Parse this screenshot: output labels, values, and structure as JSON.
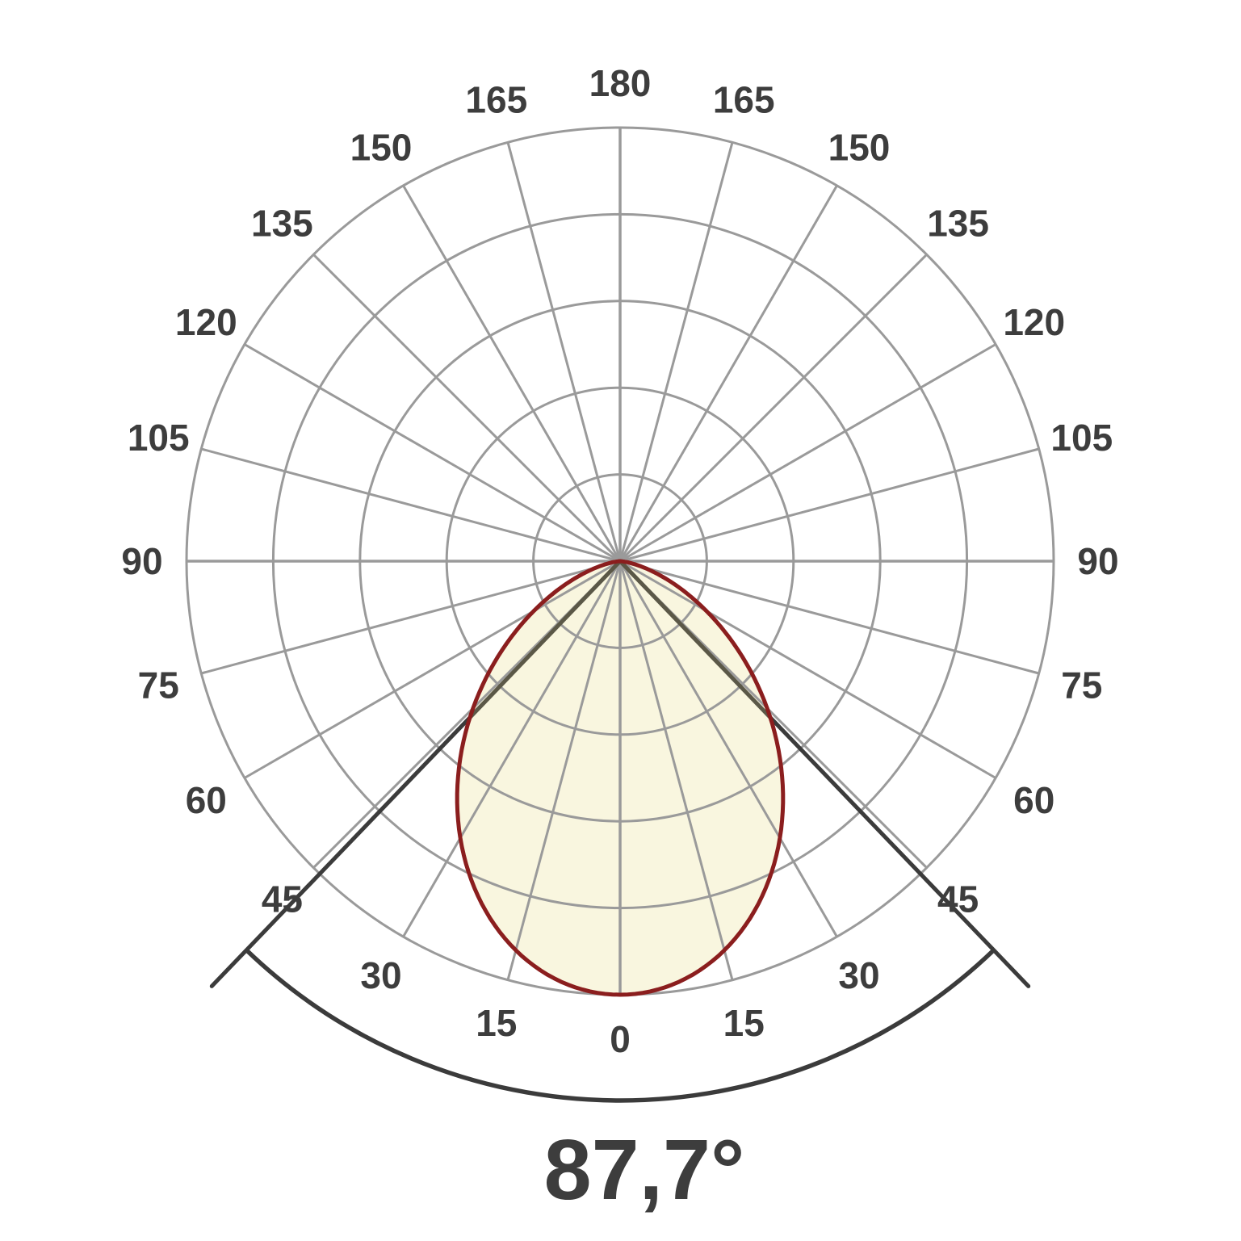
{
  "chart_data": {
    "type": "polar",
    "description": "Luminous intensity distribution curve (photometric polar diagram) with beam angle annotation",
    "beam_angle_label": "87,7°",
    "beam_angle_deg": 87.7,
    "half_beam_angle_deg": 43.85,
    "angle_unit": "deg",
    "angle_tick_step_deg": 15,
    "angle_ticks": [
      "0",
      "15",
      "30",
      "45",
      "60",
      "75",
      "90",
      "105",
      "120",
      "135",
      "150",
      "165",
      "180"
    ],
    "labels_mirrored_both_sides": true,
    "zero_direction": "down",
    "rings": 5,
    "radial_max_relative": 1.0,
    "grid_on": true,
    "legend": "none",
    "curve": {
      "model": "relative intensity ≈ cos^n(theta), n ≈ 2.12 (0.5 reached at ±43.85°)",
      "theta_deg": [
        0,
        15,
        30,
        45,
        60,
        75,
        90
      ],
      "relative_intensity": [
        1.0,
        0.93,
        0.74,
        0.48,
        0.23,
        0.06,
        0.0
      ]
    },
    "colors": {
      "grid": "#9a9a9a",
      "curve_stroke": "#8b1e1e",
      "curve_fill": "#f9f6df",
      "beam_lines": "#3b3b3b",
      "beam_lines_inside_fill": "#5b5847",
      "labels": "#3d3d3d",
      "background": "#ffffff"
    }
  }
}
